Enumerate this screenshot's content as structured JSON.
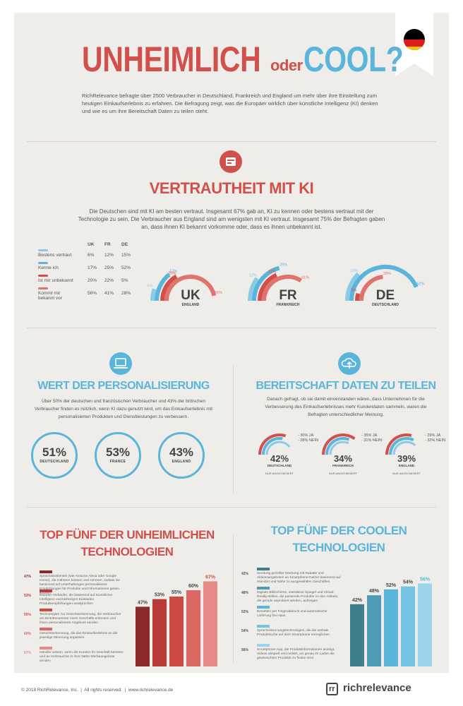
{
  "header": {
    "title_left": "UNHEIMLICH",
    "title_mid": "oder",
    "title_right": "COOL?",
    "intro": "RichRelevance befragte über 2500 Verbraucher in Deutschland, Frankreich und England um mehr über ihre Einstellung zum heutigen Einkaufserlebnis zu erfahren. Die Befragung zeigt, was die Europäer wirklich über künstliche Intelligenz (KI) denken und wie es um ihre Bereitschaft Daten zu teilen steht."
  },
  "trust": {
    "title": "VERTRAUTHEIT MIT KI",
    "text": "Die Deutschen sind mit KI am besten vertraut. Insgesamt 67% gab an, KI zu kennen oder bestens vertraut mit der Technologie zu sein. Die Verbraucher aus England sind am wenigsten mit KI vertraut. Insgesamt 75% der Befragten gaben an, dass ihnen KI bekannt vorkomme oder, dass es ihnen unbekannt ist.",
    "columns": [
      "UK",
      "FR",
      "DE"
    ],
    "rows": [
      {
        "label": "Bestens vertraut",
        "values": [
          "6%",
          "12%",
          "15%"
        ],
        "color": "#8ccbe6"
      },
      {
        "label": "Kenne ich",
        "values": [
          "17%",
          "25%",
          "52%"
        ],
        "color": "#5bb5db"
      },
      {
        "label": "Ist mir unbekannt",
        "values": [
          "20%",
          "22%",
          "5%"
        ],
        "color": "#d2504b"
      },
      {
        "label": "Kommt mir bekannt vor",
        "values": [
          "56%",
          "41%",
          "28%"
        ],
        "color": "#e0736d"
      }
    ],
    "gauges": [
      {
        "code": "UK",
        "name": "ENGLAND",
        "labels": [
          "6%",
          "17%",
          "20%",
          "56%"
        ]
      },
      {
        "code": "FR",
        "name": "FRANKREICH",
        "labels": [
          "12%",
          "25%",
          "22%",
          "41%"
        ]
      },
      {
        "code": "DE",
        "name": "DEUTSCHLAND",
        "labels": [
          "15%",
          "52%",
          "5%",
          "28%"
        ]
      }
    ]
  },
  "personal": {
    "title": "WERT DER PERSONALISIERUNG",
    "text": "Über 50% der deutschen und französischen Verbraucher und 43% der britischen Verbraucher finden es nützlich, wenn KI dazu genutzt wird, um das Einkaufserlebnis mit personalisierten Produkten und Dienstleistungen zu verbessern.",
    "circles": [
      {
        "value": "51%",
        "label": "DEUTSCHLAND"
      },
      {
        "value": "53%",
        "label": "FRANCE"
      },
      {
        "value": "43%",
        "label": "ENGLAND"
      }
    ]
  },
  "data_share": {
    "title": "BEREITSCHAFT DATEN ZU TEILEN",
    "text": "Danach gefragt, ob sie damit einverstanden wären, dass Unternehmen für die Verbesserung des Einkaufserlebnisses mehr Kundendaten sammeln, waren die Befragten unterschiedlicher Meinung.",
    "gauges": [
      {
        "value": "42%",
        "label": "DEUTSCHLAND",
        "ja": "- 30% JA",
        "nein": "- 28% NEIN",
        "note": "NUR ANONYMISIERT"
      },
      {
        "value": "34%",
        "label": "FRANKREICH",
        "ja": "- 35% JA",
        "nein": "- 31% NEIN",
        "note": "NUR ANONYMISIERT"
      },
      {
        "value": "39%",
        "label": "ENGLAND",
        "ja": "- 29% JA",
        "nein": "- 32% NEIN",
        "note": "NUR ANONYMISIERT"
      }
    ]
  },
  "creepy": {
    "title_1": "TOP FÜNF DER UNHEIMLICHEN",
    "title_2": "TECHNOLOGIEN",
    "items": [
      {
        "pct": "47%",
        "text": "Sprachassistenten (wie Amazon Alexa oder Google Home), die mithören können und zuhören, sodass sie basierend auf Unterhaltungen personalisierte Empfehlungen für Produkte und Informationen geben können",
        "color": "#8b2a2a"
      },
      {
        "pct": "53%",
        "text": "Roboter-Verkäufer, die basierend auf Künstlicher Intelligenz und bisherigen Einkäufen Produktempfehlungen aussprechen",
        "color": "#b83b38"
      },
      {
        "pct": "55%",
        "text": "Technologien zur Gesichtserkennung, die Verbraucher am Eintrittsnummer eines Geschäfts erkennen und ihnen personalisierte Angebote senden",
        "color": "#cc4a44"
      },
      {
        "pct": "60%",
        "text": "Gesichtserkennung, die das Einkaufserlebnis an die jeweilige Stimmung anpassen",
        "color": "#db6762"
      },
      {
        "pct": "67%",
        "text": "Händler wissen, wenn die Kunden ihr Geschäft betreten und an Verbraucher in ihrer Nähe Werbeangebote senden",
        "color": "#e68a86"
      }
    ],
    "chart_data": {
      "type": "bar",
      "categories": [
        "1",
        "2",
        "3",
        "4",
        "5"
      ],
      "values": [
        47,
        53,
        55,
        60,
        67
      ],
      "ylim": [
        0,
        70
      ]
    }
  },
  "cool": {
    "title_1": "TOP FÜNF DER COOLEN",
    "title_2": "TECHNOLOGIEN",
    "items": [
      {
        "pct": "42%",
        "text": "Sendung gezielter Werbung mit Rabatte und Aktionsangeboten an Smartphone-Nutzer basierend auf Standort und Nähe zu ausgewählten Geschäften",
        "color": "#3f7f8c"
      },
      {
        "pct": "48%",
        "text": "Digitale Bildschirme, interaktive Spiegel und Virtual-Reality-Brillen, die passende Produkte zu den Artikeln, die gerade anprobiert werden, aufzeigen",
        "color": "#4e9cb3"
      },
      {
        "pct": "52%",
        "text": "Bezahlen per Fingerabdruck und automatische Lieferung frei Haus",
        "color": "#5bb5db"
      },
      {
        "pct": "54%",
        "text": "Spracherkennungstechnologien, die die verbale Produktsuche auf dem Smartphone ermöglichen",
        "color": "#75c3e3"
      },
      {
        "pct": "56%",
        "text": "Smartphone-App, die Produktinformationen anzeigt, Videos abspielt und meldet, wo genau im Laden die gewünschten Produkte zu finden sind",
        "color": "#9ad3ea"
      }
    ],
    "chart_data": {
      "type": "bar",
      "categories": [
        "1",
        "2",
        "3",
        "4",
        "5"
      ],
      "values": [
        42,
        48,
        52,
        54,
        56
      ],
      "ylim": [
        0,
        60
      ]
    }
  },
  "footer": {
    "copyright": "© 2018 RichRelevance, Inc.",
    "rights": "All rights reserved.",
    "url": "www.richrelevance.de",
    "sep": "|",
    "logo_mark": "rr",
    "logo_text": "richrelevance"
  }
}
